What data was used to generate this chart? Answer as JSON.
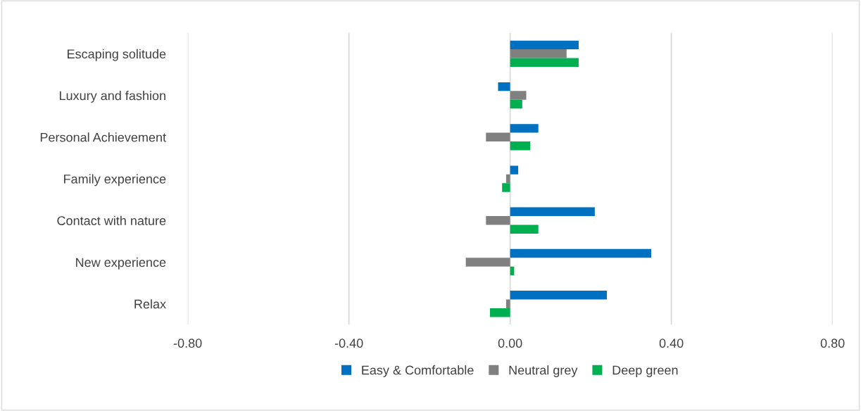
{
  "chart_data": {
    "type": "bar",
    "orientation": "horizontal",
    "categories": [
      "Escaping solitude",
      "Luxury and fashion",
      "Personal Achievement",
      "Family experience",
      "Contact with nature",
      "New experience",
      "Relax"
    ],
    "series": [
      {
        "name": "Easy & Comfortable",
        "color": "#0070c0",
        "values": [
          0.17,
          -0.03,
          0.07,
          0.02,
          0.21,
          0.35,
          0.24
        ]
      },
      {
        "name": "Neutral grey",
        "color": "#808080",
        "values": [
          0.14,
          0.04,
          -0.06,
          -0.01,
          -0.06,
          -0.11,
          -0.01
        ]
      },
      {
        "name": "Deep green",
        "color": "#00b050",
        "values": [
          0.17,
          0.03,
          0.05,
          -0.02,
          0.07,
          0.01,
          -0.05
        ]
      }
    ],
    "xlim": [
      -0.8,
      0.8
    ],
    "xticks": [
      {
        "value": -0.8,
        "label": "-0.80"
      },
      {
        "value": -0.4,
        "label": "-0.40"
      },
      {
        "value": 0,
        "label": "0.00"
      },
      {
        "value": 0.4,
        "label": "0.40"
      },
      {
        "value": 0.8,
        "label": "0.80"
      }
    ],
    "grid": "x",
    "legend": "bottom"
  }
}
